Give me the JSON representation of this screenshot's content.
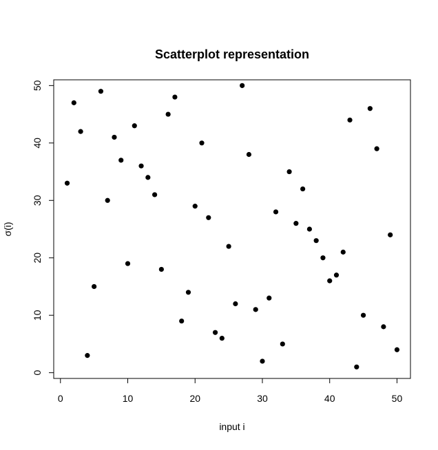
{
  "chart_data": {
    "type": "scatter",
    "title": "Scatterplot representation",
    "xlabel": "input i",
    "ylabel": "σ(i)",
    "xlim": [
      -1,
      52
    ],
    "ylim": [
      -1,
      51
    ],
    "xticks": [
      0,
      10,
      20,
      30,
      40,
      50
    ],
    "yticks": [
      0,
      10,
      20,
      30,
      40,
      50
    ],
    "grid": false,
    "point_color": "#000000",
    "x": [
      1,
      2,
      3,
      4,
      5,
      6,
      7,
      8,
      9,
      10,
      11,
      12,
      13,
      14,
      15,
      16,
      17,
      18,
      19,
      20,
      21,
      22,
      23,
      24,
      25,
      26,
      27,
      28,
      29,
      30,
      31,
      32,
      33,
      34,
      35,
      36,
      37,
      38,
      39,
      40,
      41,
      42,
      43,
      44,
      45,
      46,
      47,
      48,
      49,
      50
    ],
    "y": [
      33,
      47,
      42,
      3,
      15,
      49,
      30,
      41,
      37,
      19,
      43,
      36,
      34,
      31,
      18,
      45,
      48,
      9,
      14,
      29,
      40,
      27,
      7,
      6,
      22,
      12,
      50,
      38,
      11,
      2,
      13,
      28,
      5,
      35,
      26,
      32,
      25,
      23,
      20,
      16,
      17,
      21,
      44,
      1,
      10,
      46,
      39,
      8,
      24,
      4
    ]
  }
}
